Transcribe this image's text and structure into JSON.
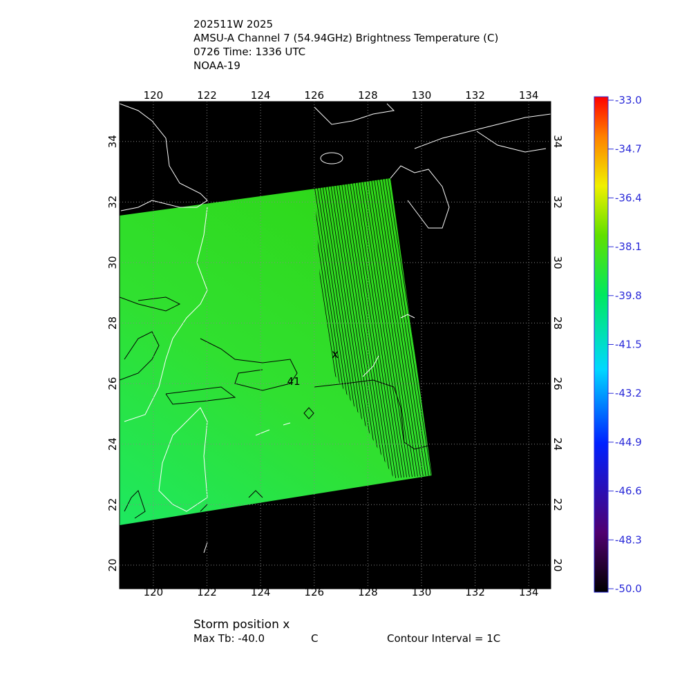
{
  "header": {
    "lines": [
      "202511W 2025",
      "AMSU-A Channel 7 (54.94GHz) Brightness Temperature (C)",
      "0726 Time: 1336 UTC",
      "NOAA-19"
    ]
  },
  "map": {
    "lon_range": [
      118.74,
      134.82
    ],
    "lat_range": [
      19.22,
      35.32
    ],
    "lon_ticks": [
      120,
      122,
      124,
      126,
      128,
      130,
      132,
      134
    ],
    "lat_ticks": [
      20,
      22,
      24,
      26,
      28,
      30,
      32,
      34
    ],
    "contour_label": "41",
    "storm_marker": "x"
  },
  "colorbar": {
    "range": [
      -50,
      -33
    ],
    "ticks": [
      {
        "value": -33,
        "label": "-33.0"
      },
      {
        "value": -34.7,
        "label": "-34.7"
      },
      {
        "value": -36.4,
        "label": "-36.4"
      },
      {
        "value": -38.1,
        "label": "-38.1"
      },
      {
        "value": -39.8,
        "label": "-39.8"
      },
      {
        "value": -41.5,
        "label": "-41.5"
      },
      {
        "value": -43.2,
        "label": "-43.2"
      },
      {
        "value": -44.9,
        "label": "-44.9"
      },
      {
        "value": -46.6,
        "label": "-46.6"
      },
      {
        "value": -48.3,
        "label": "-48.3"
      },
      {
        "value": -50,
        "label": "-50.0"
      }
    ]
  },
  "footer": {
    "storm_position": "Storm position x",
    "max_tb": "Max Tb: -40.0",
    "max_tb_unit": "C",
    "contour_interval": "Contour Interval = 1C"
  }
}
